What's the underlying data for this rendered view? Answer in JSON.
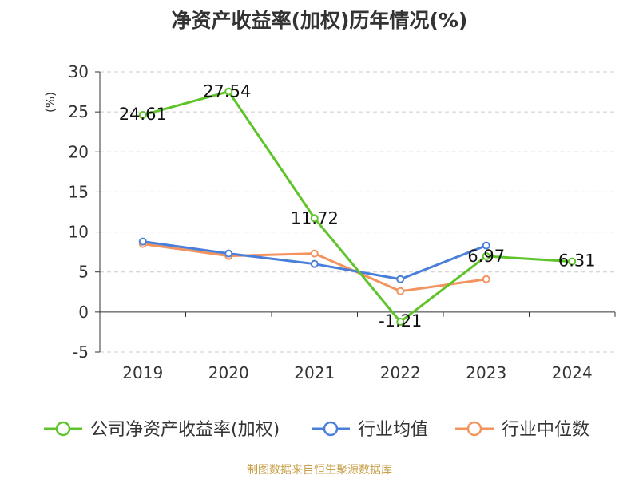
{
  "chart_data": {
    "type": "line",
    "title": "净资产收益率(加权)历年情况(%)",
    "ylabel": "(%)",
    "xlabel": "",
    "categories": [
      "2019",
      "2020",
      "2021",
      "2022",
      "2023",
      "2024"
    ],
    "ylim": [
      -5,
      30
    ],
    "yticks": [
      -5,
      0,
      5,
      10,
      15,
      20,
      25,
      30
    ],
    "grid": true,
    "legend_position": "bottom",
    "series": [
      {
        "name": "公司净资产收益率(加权)",
        "color": "#5ec42a",
        "values": [
          24.61,
          27.54,
          11.72,
          -1.21,
          6.97,
          6.31
        ],
        "data_labels": [
          "24.61",
          "27.54",
          "11.72",
          "-1.21",
          "6.97",
          "6.31"
        ]
      },
      {
        "name": "行业均值",
        "color": "#4a7fd9",
        "values": [
          8.8,
          7.3,
          6.0,
          4.1,
          8.3,
          null
        ],
        "data_labels": []
      },
      {
        "name": "行业中位数",
        "color": "#f3935f",
        "values": [
          8.5,
          7.0,
          7.3,
          2.6,
          4.1,
          null
        ],
        "data_labels": []
      }
    ]
  },
  "footer": {
    "source": "制图数据来自恒生聚源数据库"
  }
}
